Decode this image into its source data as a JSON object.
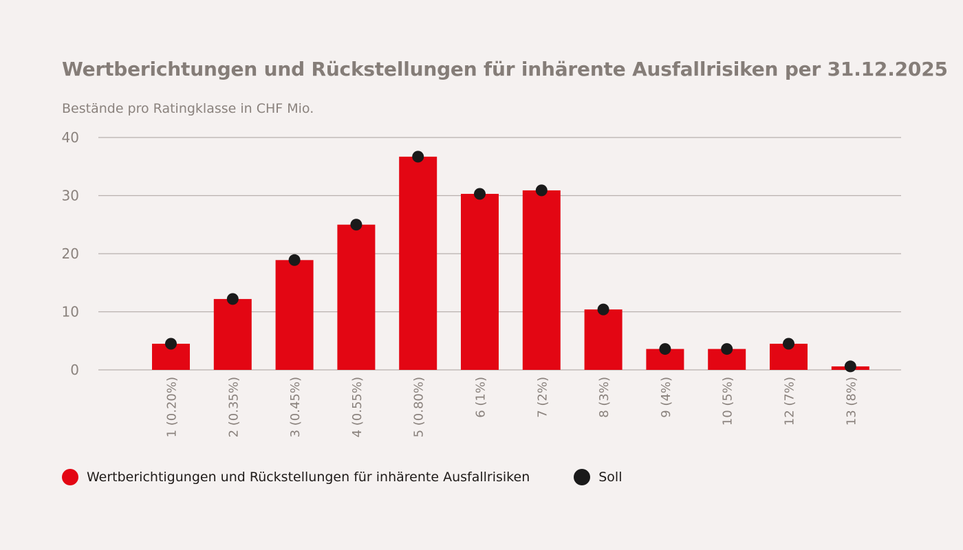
{
  "chart_data": {
    "type": "bar",
    "title": "Wertberichtungen und Rückstellungen für inhärente Ausfallrisiken per 31.12.2025",
    "subtitle": "Bestände pro Ratingklasse in CHF Mio.",
    "xlabel": "",
    "ylabel": "",
    "ylim": [
      0,
      40
    ],
    "yticks": [
      0,
      10,
      20,
      30,
      40
    ],
    "grid": true,
    "legend_placement": "bottom-left",
    "categories": [
      "1 (0.20%)",
      "2 (0.35%)",
      "3 (0.45%)",
      "4 (0.55%)",
      "5 (0.80%)",
      "6 (1%)",
      "7 (2%)",
      "8 (3%)",
      "9 (4%)",
      "10 (5%)",
      "12 (7%)",
      "13 (8%)"
    ],
    "series": [
      {
        "name": "Wertberichtigungen und Rückstellungen für inhärente Ausfallrisiken",
        "type": "bar",
        "color": "#e30613",
        "values": [
          4.5,
          12.2,
          18.9,
          25.0,
          36.7,
          30.3,
          30.9,
          10.4,
          3.6,
          3.6,
          4.5,
          0.6
        ]
      },
      {
        "name": "Soll",
        "type": "scatter",
        "color": "#1a1a1a",
        "values": [
          4.5,
          12.2,
          18.9,
          25.0,
          36.7,
          30.3,
          30.9,
          10.4,
          3.6,
          3.6,
          4.5,
          0.6
        ]
      }
    ]
  },
  "colors": {
    "background": "#f5f1f0",
    "text": "#857d78",
    "grid": "#b8b1ad"
  }
}
